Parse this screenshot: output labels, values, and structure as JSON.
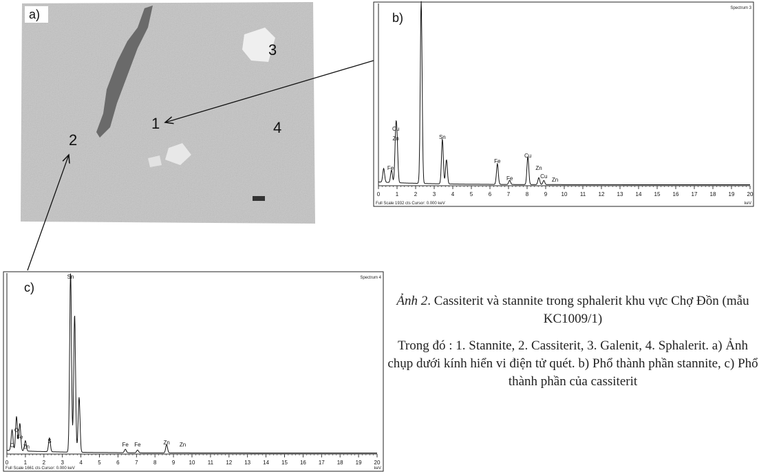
{
  "panel_a": {
    "label": "a)",
    "points": [
      "1",
      "2",
      "3",
      "4"
    ]
  },
  "panel_b": {
    "label": "b)",
    "spectrum": "Spectrum 3",
    "peak_labels": [
      "Cu",
      "Zn",
      "Fe",
      "Sn",
      "Fe",
      "Fe",
      "Cu",
      "Zn",
      "Cu",
      "Zn"
    ],
    "axis_ticks": [
      0,
      1,
      2,
      3,
      4,
      5,
      6,
      7,
      8,
      9,
      10,
      11,
      12,
      13,
      14,
      15,
      16,
      17,
      18,
      19,
      20
    ],
    "unit": "keV",
    "footer": "Full Scale 1932 cts  Cursor: 0.000 keV"
  },
  "panel_c": {
    "label": "c)",
    "spectrum": "Spectrum 4",
    "peak_labels": [
      "Sn",
      "O",
      "Fe",
      "C",
      "Zn",
      "S",
      "Fe",
      "Fe",
      "Zn",
      "Zn"
    ],
    "axis_ticks": [
      0,
      1,
      2,
      3,
      4,
      5,
      6,
      7,
      8,
      9,
      10,
      11,
      12,
      13,
      14,
      15,
      16,
      17,
      18,
      19,
      20
    ],
    "unit": "keV",
    "footer": "Full Scale 1661 cts  Cursor: 0.000 keV"
  },
  "caption": {
    "figure": "Ảnh 2",
    "title": ". Cassiterit và stannite trong sphalerit khu vực Chợ Đồn (mẫu KC1009/1)",
    "body": "Trong đó : 1. Stannite, 2. Cassiterit, 3. Galenit, 4. Sphalerit. a) Ảnh chụp dưới kính hiển vi điện tử quét. b) Phổ thành phần stannite, c) Phổ thành phần của cassiterit"
  }
}
